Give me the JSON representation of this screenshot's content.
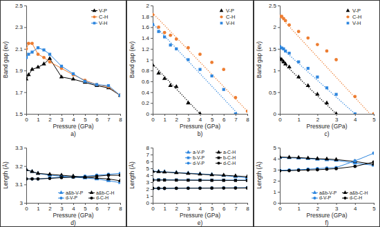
{
  "chart_data": [
    {
      "type": "line",
      "caption": "a)",
      "x_label": "Pressure (GPa)",
      "y_label": "Band gap (ev)",
      "xlim": [
        0,
        8
      ],
      "xticks": [
        0,
        1,
        2,
        3,
        4,
        5,
        6,
        7,
        8
      ],
      "ylim": [
        1.5,
        2.5
      ],
      "yticks": [
        1.5,
        1.7,
        1.9,
        2.1,
        2.3,
        2.5
      ],
      "grid": false,
      "legend": "upper right",
      "series": [
        {
          "name": "V-P",
          "color": "#000000",
          "marker": "triangle",
          "line_style": "solid",
          "x": [
            0,
            0.2,
            0.5,
            1,
            1.5,
            2,
            3,
            4,
            5,
            6,
            7,
            8
          ],
          "values": [
            1.82,
            1.86,
            1.91,
            1.93,
            1.96,
            2.01,
            1.84,
            1.82,
            1.79,
            1.76,
            1.74,
            1.67
          ]
        },
        {
          "name": "C-H",
          "color": "#ED7D31",
          "marker": "circle",
          "line_style": "solid",
          "x": [
            0,
            0.2,
            0.5,
            1,
            1.5,
            2,
            3,
            4,
            5,
            6,
            7,
            8
          ],
          "values": [
            2.1,
            2.15,
            2.15,
            2.05,
            2.02,
            1.98,
            1.92,
            1.86,
            1.81,
            1.77,
            1.75,
            1.67
          ]
        },
        {
          "name": "V-H",
          "color": "#2E86DE",
          "marker": "square",
          "line_style": "solid",
          "x": [
            0,
            0.2,
            0.5,
            1,
            1.5,
            2,
            3,
            4,
            5,
            6,
            7,
            8
          ],
          "values": [
            2.02,
            2.05,
            2.07,
            2.11,
            2.09,
            2.05,
            1.94,
            1.87,
            1.8,
            1.77,
            1.76,
            1.67
          ]
        }
      ]
    },
    {
      "type": "scatter",
      "caption": "b)",
      "x_label": "Pressure (GPa)",
      "y_label": "Band gap (ev)",
      "xlim": [
        0,
        8
      ],
      "xticks": [
        0,
        1,
        2,
        3,
        4,
        5,
        6,
        7,
        8
      ],
      "ylim": [
        0,
        2
      ],
      "yticks": [
        0,
        0.2,
        0.4,
        0.6,
        0.8,
        1,
        1.2,
        1.4,
        1.6,
        1.8,
        2
      ],
      "grid": false,
      "legend": "upper right",
      "series": [
        {
          "name": "V-P",
          "color": "#000000",
          "marker": "triangle",
          "line_style": "dotted",
          "x": [
            0,
            0.5,
            1,
            1.5,
            2,
            3,
            4
          ],
          "values": [
            0.9,
            0.75,
            0.65,
            0.52,
            0.5,
            0.2,
            0
          ],
          "fit_x": [
            0,
            4
          ],
          "fit_values": [
            0.92,
            0
          ]
        },
        {
          "name": "C-H",
          "color": "#ED7D31",
          "marker": "circle",
          "line_style": "dotted",
          "x": [
            0,
            0.5,
            1,
            1.5,
            2,
            3,
            4,
            5,
            6,
            7,
            8
          ],
          "values": [
            1.83,
            1.6,
            1.5,
            1.45,
            1.38,
            1.22,
            1.1,
            0.95,
            0.82,
            0.3,
            0.05
          ],
          "fit_x": [
            0,
            8
          ],
          "fit_values": [
            1.86,
            0.05
          ]
        },
        {
          "name": "V-H",
          "color": "#2E86DE",
          "marker": "square",
          "line_style": "dotted",
          "x": [
            0,
            0.5,
            1,
            1.5,
            2,
            3,
            4,
            5,
            6,
            7
          ],
          "values": [
            1.65,
            1.52,
            1.42,
            1.27,
            1.2,
            1.0,
            0.82,
            0.7,
            0.45,
            0
          ],
          "fit_x": [
            0,
            7.2
          ],
          "fit_values": [
            1.67,
            0
          ]
        }
      ]
    },
    {
      "type": "scatter",
      "caption": "c)",
      "x_label": "Pressure (GPa)",
      "y_label": "Band gap (ev)",
      "xlim": [
        0,
        5
      ],
      "xticks": [
        0,
        1,
        2,
        3,
        4,
        5
      ],
      "ylim": [
        0,
        2.5
      ],
      "yticks": [
        0,
        0.5,
        1,
        1.5,
        2,
        2.5
      ],
      "grid": false,
      "legend": "upper right",
      "series": [
        {
          "name": "V-P",
          "color": "#000000",
          "marker": "triangle",
          "line_style": "dotted",
          "x": [
            0,
            0.1,
            0.2,
            0.3,
            0.5,
            1,
            1.5,
            2,
            2.5,
            3
          ],
          "values": [
            1.28,
            1.25,
            1.2,
            1.15,
            1.08,
            0.85,
            0.65,
            0.45,
            0.25,
            0
          ],
          "fit_x": [
            0,
            3
          ],
          "fit_values": [
            1.25,
            0
          ]
        },
        {
          "name": "C-H",
          "color": "#ED7D31",
          "marker": "circle",
          "line_style": "dotted",
          "x": [
            0,
            0.1,
            0.2,
            0.3,
            0.5,
            1,
            1.5,
            2,
            2.5,
            3,
            4,
            5
          ],
          "values": [
            2.25,
            2.25,
            2.2,
            2.15,
            2.05,
            1.9,
            1.75,
            1.6,
            1.45,
            1.25,
            0.4,
            0
          ],
          "fit_x": [
            0,
            4.8
          ],
          "fit_values": [
            2.25,
            0
          ]
        },
        {
          "name": "V-H",
          "color": "#2E86DE",
          "marker": "square",
          "line_style": "dotted",
          "x": [
            0,
            0.1,
            0.2,
            0.3,
            0.5,
            1,
            1.5,
            2,
            2.5,
            3,
            4
          ],
          "values": [
            1.55,
            1.52,
            1.5,
            1.45,
            1.4,
            1.2,
            1.05,
            0.85,
            0.6,
            0.45,
            0
          ],
          "fit_x": [
            0,
            4
          ],
          "fit_values": [
            1.55,
            0
          ]
        }
      ]
    },
    {
      "type": "line",
      "caption": "d)",
      "x_label": "Pressure (GPa)",
      "y_label": "Length (Å)",
      "xlim": [
        0,
        8
      ],
      "xticks": [
        0,
        1,
        2,
        3,
        4,
        5,
        6,
        7,
        8
      ],
      "ylim": [
        3,
        3.3
      ],
      "yticks": [
        3,
        3.1,
        3.2,
        3.3
      ],
      "grid": false,
      "legend": "lower right",
      "series": [
        {
          "name": "a&b-V-P",
          "color": "#2E86DE",
          "marker": "triangle",
          "line_style": "solid",
          "x": [
            0,
            0.5,
            1,
            2,
            3,
            4,
            5,
            6,
            7,
            8
          ],
          "values": [
            3.18,
            3.17,
            3.16,
            3.15,
            3.145,
            3.14,
            3.135,
            3.13,
            3.12,
            3.11
          ]
        },
        {
          "name": "a&b-C-H",
          "color": "#000000",
          "marker": "triangle",
          "line_style": "solid",
          "x": [
            0,
            0.5,
            1,
            2,
            3,
            4,
            5,
            6,
            7,
            8
          ],
          "values": [
            3.18,
            3.17,
            3.16,
            3.155,
            3.15,
            3.145,
            3.14,
            3.135,
            3.13,
            3.12
          ]
        },
        {
          "name": "d-V-P",
          "color": "#2E86DE",
          "marker": "circle",
          "line_style": "solid",
          "x": [
            0,
            0.5,
            1,
            2,
            3,
            4,
            5,
            6,
            7,
            8
          ],
          "values": [
            3.13,
            3.13,
            3.13,
            3.135,
            3.14,
            3.14,
            3.145,
            3.15,
            3.155,
            3.16
          ]
        },
        {
          "name": "d-C-H",
          "color": "#000000",
          "marker": "circle",
          "line_style": "solid",
          "x": [
            0,
            0.5,
            1,
            2,
            3,
            4,
            5,
            6,
            7,
            8
          ],
          "values": [
            3.13,
            3.13,
            3.13,
            3.133,
            3.137,
            3.14,
            3.14,
            3.145,
            3.15,
            3.15
          ]
        }
      ]
    },
    {
      "type": "line",
      "caption": "e)",
      "x_label": "Pressure (GPa)",
      "y_label": "Length (Å)",
      "xlim": [
        0,
        8
      ],
      "xticks": [
        0,
        1,
        2,
        3,
        4,
        5,
        6,
        7,
        8
      ],
      "ylim": [
        0,
        8
      ],
      "yticks": [
        0,
        1,
        2,
        3,
        4,
        5,
        6,
        7,
        8
      ],
      "grid": false,
      "legend": "upper right",
      "series": [
        {
          "name": "a-V-P",
          "color": "#2E86DE",
          "marker": "triangle",
          "line_style": "solid",
          "x": [
            0,
            0.5,
            1,
            2,
            3,
            4,
            5,
            6,
            7,
            8
          ],
          "values": [
            4.6,
            4.55,
            4.5,
            4.4,
            4.3,
            4.2,
            4.1,
            3.95,
            3.8,
            3.6
          ]
        },
        {
          "name": "a-C-H",
          "color": "#000000",
          "marker": "triangle",
          "line_style": "solid",
          "x": [
            0,
            0.5,
            1,
            2,
            3,
            4,
            5,
            6,
            7,
            8
          ],
          "values": [
            4.55,
            4.5,
            4.45,
            4.35,
            4.25,
            4.15,
            4.05,
            4.0,
            3.9,
            3.8
          ]
        },
        {
          "name": "b-V-P",
          "color": "#2E86DE",
          "marker": "square",
          "line_style": "solid",
          "x": [
            0,
            0.5,
            1,
            2,
            3,
            4,
            5,
            6,
            7,
            8
          ],
          "values": [
            3.35,
            3.35,
            3.34,
            3.33,
            3.32,
            3.31,
            3.3,
            3.3,
            3.3,
            3.3
          ]
        },
        {
          "name": "b-C-H",
          "color": "#000000",
          "marker": "square",
          "line_style": "solid",
          "x": [
            0,
            0.5,
            1,
            2,
            3,
            4,
            5,
            6,
            7,
            8
          ],
          "values": [
            3.3,
            3.3,
            3.3,
            3.29,
            3.28,
            3.27,
            3.26,
            3.26,
            3.25,
            3.25
          ]
        },
        {
          "name": "d-V-P",
          "color": "#2E86DE",
          "marker": "circle",
          "line_style": "solid",
          "x": [
            0,
            0.5,
            1,
            2,
            3,
            4,
            5,
            6,
            7,
            8
          ],
          "values": [
            2.1,
            2.1,
            2.1,
            2.12,
            2.13,
            2.14,
            2.15,
            2.17,
            2.18,
            2.2
          ]
        },
        {
          "name": "d-C-H",
          "color": "#000000",
          "marker": "circle",
          "line_style": "solid",
          "x": [
            0,
            0.5,
            1,
            2,
            3,
            4,
            5,
            6,
            7,
            8
          ],
          "values": [
            2.1,
            2.1,
            2.1,
            2.11,
            2.12,
            2.12,
            2.13,
            2.14,
            2.14,
            2.15
          ]
        }
      ]
    },
    {
      "type": "line",
      "caption": "f)",
      "x_label": "Pressure (GPa)",
      "y_label": "Length (Å)",
      "xlim": [
        0,
        5
      ],
      "xticks": [
        0,
        1,
        2,
        3,
        4,
        5
      ],
      "ylim": [
        0,
        5
      ],
      "yticks": [
        0,
        1,
        2,
        3,
        4,
        5
      ],
      "grid": false,
      "legend": "lower right",
      "series": [
        {
          "name": "a&b-V-P",
          "color": "#2E86DE",
          "marker": "triangle",
          "line_style": "solid",
          "x": [
            0,
            0.5,
            1,
            1.5,
            2,
            2.5,
            3,
            4,
            5
          ],
          "values": [
            4.1,
            4.08,
            4.05,
            4.0,
            3.95,
            3.9,
            3.85,
            3.6,
            3.4
          ]
        },
        {
          "name": "a&b-C-H",
          "color": "#000000",
          "marker": "triangle",
          "line_style": "solid",
          "x": [
            0,
            0.5,
            1,
            1.5,
            2,
            2.5,
            3,
            4,
            5
          ],
          "values": [
            4.15,
            4.12,
            4.1,
            4.05,
            4.0,
            3.97,
            3.92,
            3.75,
            3.5
          ]
        },
        {
          "name": "d-V-P",
          "color": "#2E86DE",
          "marker": "circle",
          "line_style": "solid",
          "x": [
            0,
            0.5,
            1,
            1.5,
            2,
            2.5,
            3,
            4,
            5
          ],
          "values": [
            2.95,
            2.97,
            3.0,
            3.05,
            3.1,
            3.15,
            3.2,
            3.8,
            4.5
          ]
        },
        {
          "name": "d-C-H",
          "color": "#000000",
          "marker": "circle",
          "line_style": "solid",
          "x": [
            0,
            0.5,
            1,
            1.5,
            2,
            2.5,
            3,
            4,
            5
          ],
          "values": [
            2.9,
            2.92,
            2.95,
            2.98,
            3.0,
            3.05,
            3.1,
            3.3,
            3.7
          ]
        }
      ]
    }
  ]
}
